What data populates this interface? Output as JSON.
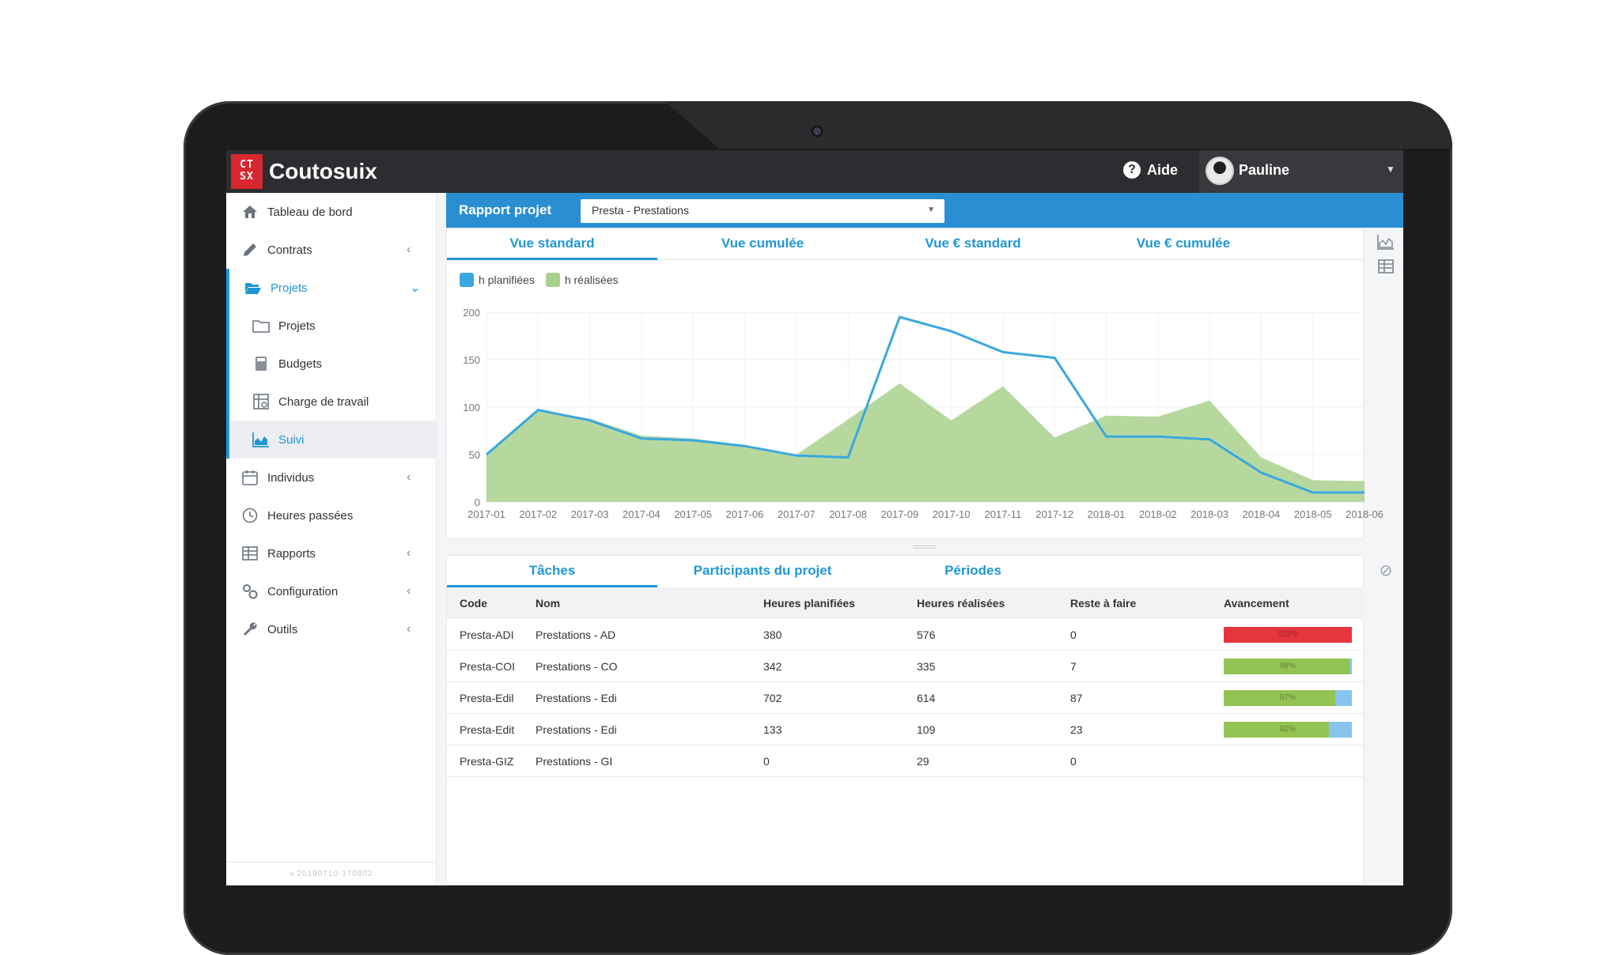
{
  "app": {
    "logo_text": "CT SX",
    "title": "Coutosuix",
    "help_label": "Aide",
    "user_name": "Pauline"
  },
  "sidebar": {
    "items": [
      {
        "label": "Tableau de bord",
        "icon": "home-icon"
      },
      {
        "label": "Contrats",
        "icon": "pencil-icon"
      },
      {
        "label": "Projets",
        "icon": "folder-open-icon"
      },
      {
        "label": "Projets",
        "icon": "folder-icon"
      },
      {
        "label": "Budgets",
        "icon": "calculator-icon"
      },
      {
        "label": "Charge de travail",
        "icon": "workload-icon"
      },
      {
        "label": "Suivi",
        "icon": "area-chart-icon"
      },
      {
        "label": "Individus",
        "icon": "calendar-icon"
      },
      {
        "label": "Heures passées",
        "icon": "clock-icon"
      },
      {
        "label": "Rapports",
        "icon": "table-icon"
      },
      {
        "label": "Configuration",
        "icon": "gears-icon"
      },
      {
        "label": "Outils",
        "icon": "wrench-icon"
      }
    ],
    "version": "v.20190710-170802"
  },
  "report": {
    "label": "Rapport projet",
    "project": "Presta - Prestations"
  },
  "chart_tabs": [
    "Vue standard",
    "Vue cumulée",
    "Vue € standard",
    "Vue € cumulée"
  ],
  "chart_data": {
    "type": "area",
    "x": [
      "2017-01",
      "2017-02",
      "2017-03",
      "2017-04",
      "2017-05",
      "2017-06",
      "2017-07",
      "2017-08",
      "2017-09",
      "2017-10",
      "2017-11",
      "2017-12",
      "2018-01",
      "2018-02",
      "2018-03",
      "2018-04",
      "2018-05",
      "2018-06"
    ],
    "yticks": [
      0,
      50,
      100,
      150,
      200
    ],
    "ylim": [
      0,
      200
    ],
    "series": [
      {
        "name": "h planifiées",
        "color": "#3aa8e0",
        "style": "line",
        "values": [
          50,
          97,
          86,
          67,
          65,
          59,
          49,
          47,
          195,
          180,
          158,
          152,
          69,
          69,
          66,
          31,
          10,
          10
        ]
      },
      {
        "name": "h réalisées",
        "color": "#a9d18e",
        "style": "area",
        "values": [
          50,
          97,
          88,
          70,
          67,
          60,
          50,
          87,
          125,
          86,
          122,
          68,
          91,
          90,
          107,
          47,
          23,
          22
        ]
      }
    ]
  },
  "table": {
    "tabs": [
      "Tâches",
      "Participants du projet",
      "Périodes"
    ],
    "columns": [
      "Code",
      "Nom",
      "Heures planifiées",
      "Heures réalisées",
      "Reste à faire",
      "Avancement"
    ],
    "rows": [
      {
        "code": "Presta-ADI",
        "name": "Prestations - AD",
        "planned": "380",
        "done": "576",
        "remaining": "0",
        "progress_label": "152%",
        "progress": 1.0,
        "color": "#e5363d"
      },
      {
        "code": "Presta-COI",
        "name": "Prestations - CO",
        "planned": "342",
        "done": "335",
        "remaining": "7",
        "progress_label": "98%",
        "progress": 0.98,
        "color": "#93c353"
      },
      {
        "code": "Presta-Edil",
        "name": "Prestations - Edi",
        "planned": "702",
        "done": "614",
        "remaining": "87",
        "progress_label": "87%",
        "progress": 0.87,
        "color": "#93c353"
      },
      {
        "code": "Presta-Edit",
        "name": "Prestations - Edi",
        "planned": "133",
        "done": "109",
        "remaining": "23",
        "progress_label": "82%",
        "progress": 0.82,
        "color": "#93c353"
      },
      {
        "code": "Presta-GIZ",
        "name": "Prestations - GI",
        "planned": "0",
        "done": "29",
        "remaining": "0",
        "progress_label": "",
        "progress": 0,
        "color": "#93c353"
      }
    ]
  }
}
